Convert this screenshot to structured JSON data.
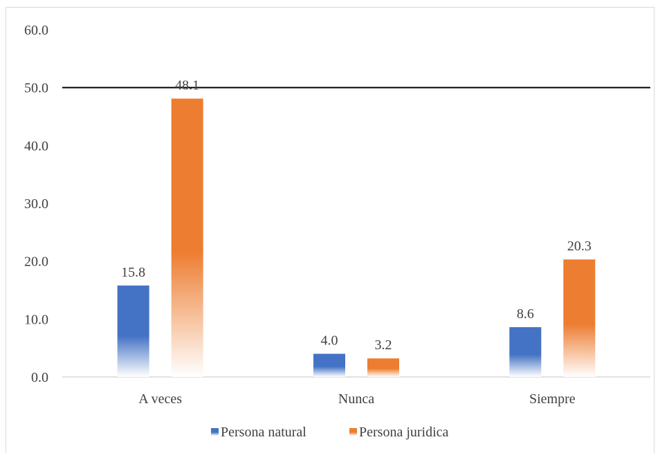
{
  "chart_data": {
    "type": "bar",
    "categories": [
      "A veces",
      "Nunca",
      "Siempre"
    ],
    "series": [
      {
        "name": "Persona natural",
        "values": [
          15.8,
          4.0,
          8.6
        ],
        "color": "#4472c4"
      },
      {
        "name": "Persona juridica",
        "values": [
          48.1,
          3.2,
          20.3
        ],
        "color": "#ed7d31"
      }
    ],
    "ylim": [
      0,
      60
    ],
    "yticks": [
      "0.0",
      "10.0",
      "20.0",
      "30.0",
      "40.0",
      "50.0",
      "60.0"
    ],
    "reference_line": 50.0,
    "grid": false,
    "legend": "bottom",
    "bar_fill": "gradient fading to white at base"
  }
}
